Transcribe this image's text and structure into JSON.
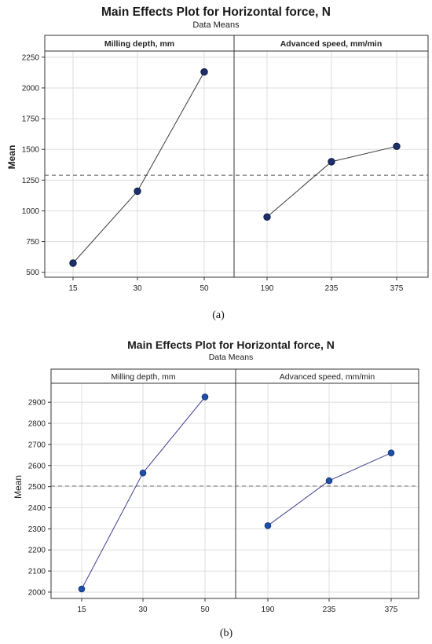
{
  "chart_data": [
    {
      "type": "line",
      "title": "Main Effects Plot for Horizontal force, N",
      "subtitle": "Data Means",
      "ylabel": "Mean",
      "ylim": [
        460,
        2300
      ],
      "yticks": [
        500,
        750,
        1000,
        1250,
        1500,
        1750,
        2000,
        2250
      ],
      "reference_line": 1290,
      "panels": [
        {
          "label": "Milling depth, mm",
          "categories": [
            "15",
            "30",
            "50"
          ],
          "values": [
            575,
            1160,
            2130
          ]
        },
        {
          "label": "Advanced speed, mm/min",
          "categories": [
            "190",
            "235",
            "375"
          ],
          "values": [
            950,
            1400,
            1525
          ]
        }
      ],
      "caption": "(a)"
    },
    {
      "type": "line",
      "title": "Main Effects Plot for Horizontal force, N",
      "subtitle": "Data Means",
      "ylabel": "Mean",
      "ylim": [
        1970,
        2990
      ],
      "yticks": [
        2000,
        2100,
        2200,
        2300,
        2400,
        2500,
        2600,
        2700,
        2800,
        2900
      ],
      "reference_line": 2503,
      "panels": [
        {
          "label": "Milling depth, mm",
          "categories": [
            "15",
            "30",
            "50"
          ],
          "values": [
            2015,
            2565,
            2925
          ]
        },
        {
          "label": "Advanced speed, mm/min",
          "categories": [
            "190",
            "235",
            "375"
          ],
          "values": [
            2315,
            2528,
            2660
          ]
        }
      ],
      "caption": "(b)"
    }
  ]
}
